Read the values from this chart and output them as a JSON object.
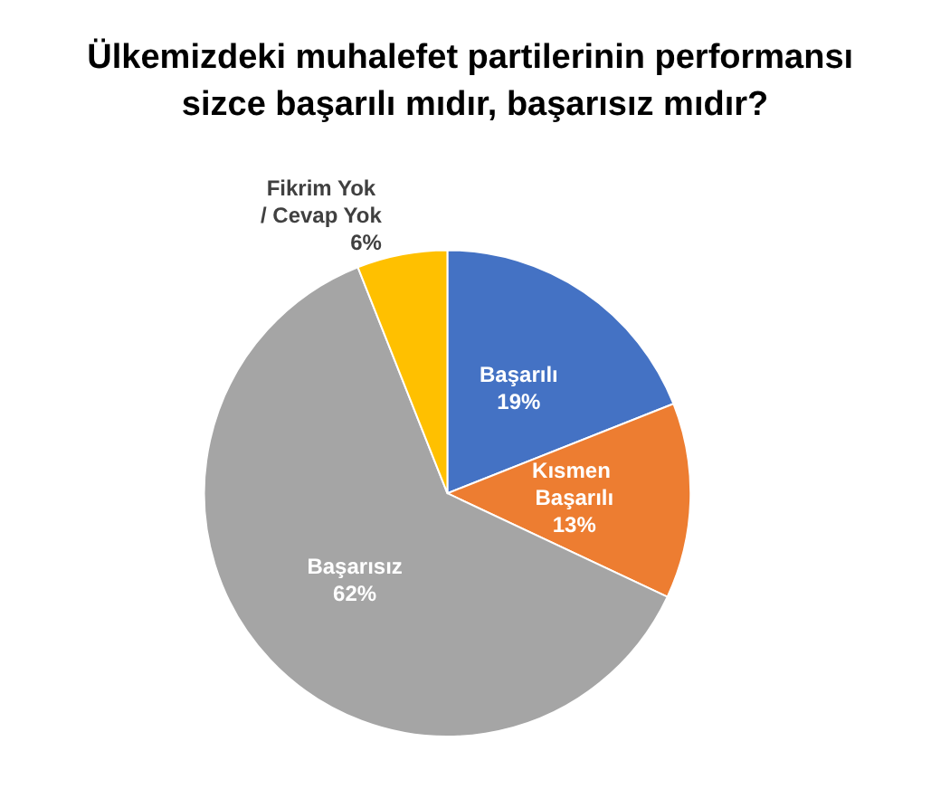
{
  "chart_data": {
    "type": "pie",
    "title": "Ülkemizdeki muhalefet partilerinin performansı sizce başarılı mıdır, başarısız mıdır?",
    "categories": [
      "Başarılı",
      "Kısmen Başarılı",
      "Başarısız",
      "Fikrim Yok / Cevap Yok"
    ],
    "values": [
      19,
      13,
      62,
      6
    ],
    "colors": [
      "#4472c4",
      "#ed7d31",
      "#a5a5a5",
      "#ffc000"
    ],
    "value_labels": [
      "19%",
      "13%",
      "62%",
      "6%"
    ],
    "legend": false
  }
}
